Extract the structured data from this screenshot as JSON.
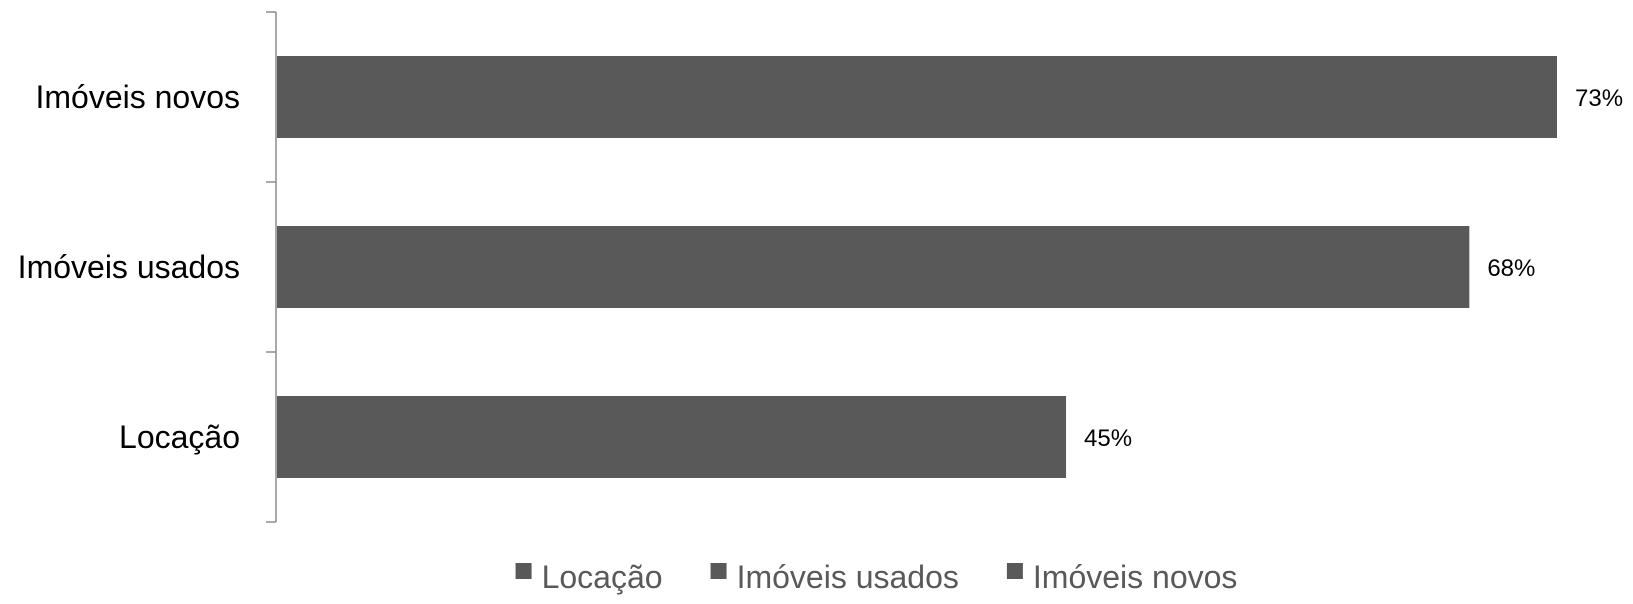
{
  "chart_data": {
    "type": "bar",
    "orientation": "horizontal",
    "categories": [
      "Imóveis novos",
      "Imóveis usados",
      "Locação"
    ],
    "values": [
      73,
      68,
      45
    ],
    "value_labels": [
      "73%",
      "68%",
      "45%"
    ],
    "xlim": [
      0,
      73
    ],
    "grid": false,
    "bar_color": "#595959",
    "axis_color": "#8c8c8c",
    "legend": {
      "placement": "bottom",
      "entries": [
        "Locação",
        "Imóveis usados",
        "Imóveis novos"
      ]
    }
  }
}
